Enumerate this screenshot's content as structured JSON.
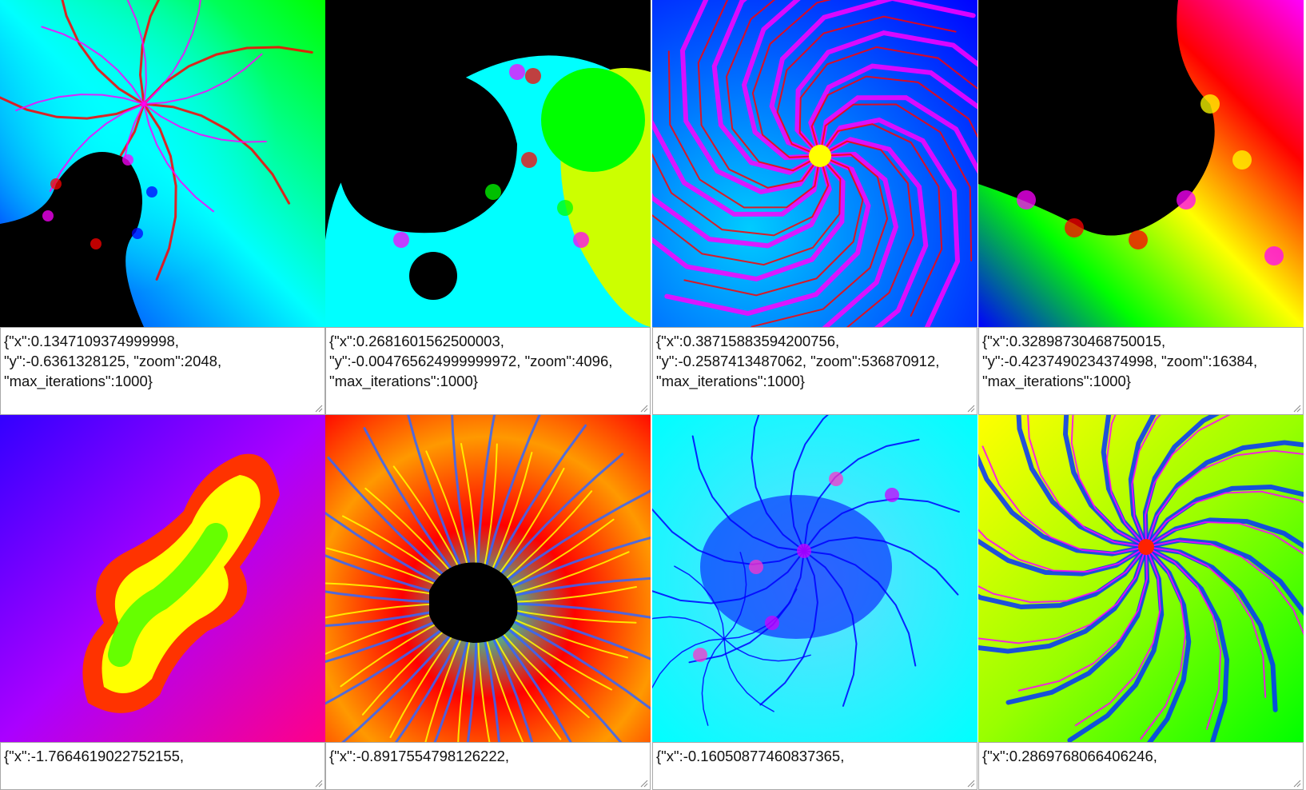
{
  "fractals": [
    {
      "params_text": "{\"x\":0.1347109374999998,\n\"y\":-0.6361328125, \"zoom\":2048,\n\"max_iterations\":1000}",
      "scheme": "seahorse-valley",
      "palette": [
        "#00ff00",
        "#00ffff",
        "#0000ff",
        "#ff00ff",
        "#ff0000",
        "#000000"
      ]
    },
    {
      "params_text": "{\"x\":0.2681601562500003,\n\"y\":-0.004765624999999972, \"zoom\":4096,\n\"max_iterations\":1000}",
      "scheme": "mini-mandelbrot",
      "palette": [
        "#000000",
        "#00ff00",
        "#ccff00",
        "#00ffff",
        "#ff00ff",
        "#ff0000"
      ]
    },
    {
      "params_text": "{\"x\":0.38715883594200756,\n\"y\":-0.2587413487062, \"zoom\":536870912,\n\"max_iterations\":1000}",
      "scheme": "spiral",
      "palette": [
        "#00ccff",
        "#0000ff",
        "#ff00ff",
        "#ff0000",
        "#ffff00"
      ]
    },
    {
      "params_text": "{\"x\":0.32898730468750015,\n\"y\":-0.4237490234374998, \"zoom\":16384,\n\"max_iterations\":1000}",
      "scheme": "cardioid-edge",
      "palette": [
        "#000000",
        "#ff00ff",
        "#ff0000",
        "#ffff00",
        "#00ff00",
        "#0000ff"
      ]
    },
    {
      "params_text": "{\"x\":-1.7664619022752155,",
      "scheme": "julia-island",
      "palette": [
        "#3300ff",
        "#aa00ff",
        "#ff0088",
        "#ff3300",
        "#ffff00",
        "#66ff00"
      ]
    },
    {
      "params_text": "{\"x\":-0.8917554798126222,",
      "scheme": "starburst",
      "palette": [
        "#000000",
        "#ff0000",
        "#ff9900",
        "#ffff00",
        "#00ffcc",
        "#3366ff"
      ]
    },
    {
      "params_text": "{\"x\":-0.16050877460837365,",
      "scheme": "dendrite",
      "palette": [
        "#00ffff",
        "#66ddff",
        "#0000ff",
        "#cc00ff",
        "#ff33cc"
      ]
    },
    {
      "params_text": "{\"x\":0.2869768066406246,",
      "scheme": "wheel",
      "palette": [
        "#ffff00",
        "#99ff00",
        "#00ff00",
        "#0033ff",
        "#ff00ff",
        "#ff2200"
      ]
    }
  ]
}
